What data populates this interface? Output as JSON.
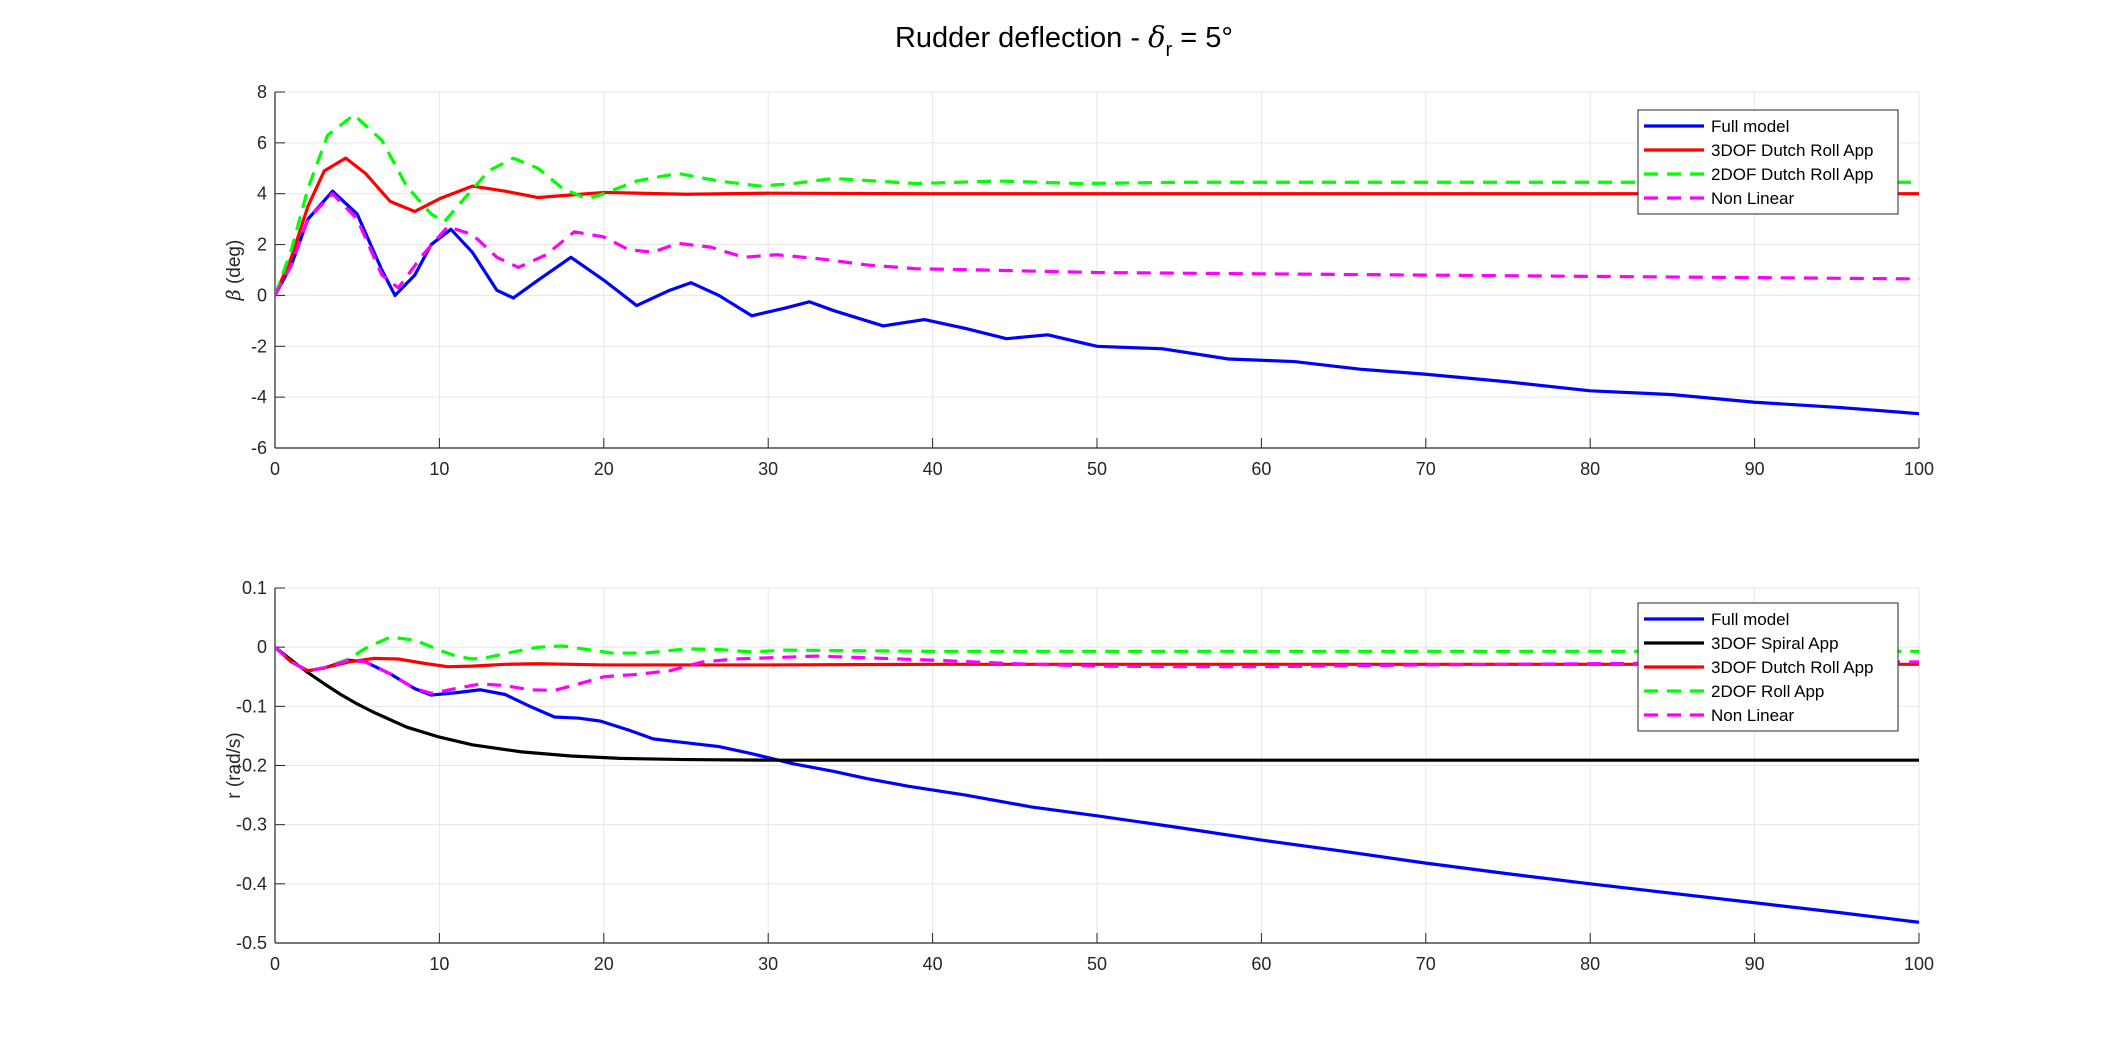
{
  "figure": {
    "title_prefix": "Rudder deflection - ",
    "title_symbol": "δ",
    "title_subscript": "r",
    "title_suffix": " = 5°"
  },
  "chart_data": [
    {
      "type": "line",
      "id": "beta",
      "title": "",
      "xlabel": "",
      "ylabel_symbol": "β",
      "ylabel_unit": " (deg)",
      "xlim": [
        0,
        100
      ],
      "ylim": [
        -6,
        8
      ],
      "xticks": [
        0,
        10,
        20,
        30,
        40,
        50,
        60,
        70,
        80,
        90,
        100
      ],
      "yticks": [
        -6,
        -4,
        -2,
        0,
        2,
        4,
        6,
        8
      ],
      "grid": true,
      "legend_position": "top-right",
      "series": [
        {
          "name": "Full model",
          "color": "#0000ff",
          "dash": "solid",
          "x": [
            0,
            1,
            2,
            3.5,
            5,
            6.5,
            7.3,
            8.5,
            9.5,
            10.7,
            12,
            13.5,
            14.5,
            16,
            18,
            20,
            22,
            24,
            25.3,
            27,
            29,
            31,
            32.5,
            34,
            37,
            39.5,
            42,
            44.5,
            47,
            50,
            54,
            58,
            62,
            66,
            70,
            75,
            80,
            85,
            90,
            95,
            100
          ],
          "y": [
            0,
            1.2,
            3.0,
            4.1,
            3.2,
            1.0,
            0.0,
            0.8,
            2.0,
            2.6,
            1.7,
            0.2,
            -0.1,
            0.6,
            1.5,
            0.6,
            -0.4,
            0.2,
            0.5,
            0.0,
            -0.8,
            -0.5,
            -0.25,
            -0.6,
            -1.2,
            -0.95,
            -1.3,
            -1.7,
            -1.55,
            -2.0,
            -2.1,
            -2.5,
            -2.6,
            -2.9,
            -3.1,
            -3.4,
            -3.75,
            -3.9,
            -4.2,
            -4.4,
            -4.65
          ]
        },
        {
          "name": "3DOF Dutch Roll App",
          "color": "#ff0000",
          "dash": "solid",
          "x": [
            0,
            1,
            2,
            3,
            4.3,
            5.5,
            7,
            8.5,
            10,
            12,
            14,
            16,
            18,
            20,
            25,
            30,
            40,
            60,
            80,
            100
          ],
          "y": [
            0,
            1.5,
            3.5,
            4.9,
            5.4,
            4.8,
            3.7,
            3.3,
            3.8,
            4.3,
            4.1,
            3.85,
            3.95,
            4.05,
            3.98,
            4.02,
            4.0,
            4.0,
            4.0,
            4.0
          ]
        },
        {
          "name": "2DOF Dutch Roll App",
          "color": "#00ff00",
          "dash": "dashed",
          "x": [
            0,
            1,
            2,
            3.2,
            4.8,
            6.5,
            8,
            9.5,
            10.3,
            11.5,
            13,
            14.5,
            16,
            17.5,
            19,
            20,
            22,
            24.5,
            27,
            29.5,
            31.5,
            34,
            36.5,
            39,
            44,
            49,
            55,
            60,
            70,
            80,
            90,
            100
          ],
          "y": [
            0,
            1.8,
            4.2,
            6.3,
            7.1,
            6.1,
            4.3,
            3.2,
            2.9,
            3.8,
            4.9,
            5.4,
            5.0,
            4.2,
            3.8,
            4.0,
            4.5,
            4.8,
            4.5,
            4.3,
            4.4,
            4.6,
            4.5,
            4.4,
            4.5,
            4.4,
            4.45,
            4.45,
            4.45,
            4.45,
            4.45,
            4.45
          ]
        },
        {
          "name": "Non Linear",
          "color": "#ff00ff",
          "dash": "dashed",
          "x": [
            0,
            1,
            2,
            3.5,
            5,
            6.5,
            7.5,
            9,
            10.5,
            12,
            13.5,
            14.8,
            16.5,
            18.2,
            20,
            21.5,
            23,
            24.5,
            26.5,
            28.5,
            30.5,
            33,
            36,
            39,
            43,
            50,
            60,
            70,
            80,
            90,
            100
          ],
          "y": [
            0,
            1.2,
            3.0,
            4.0,
            3.0,
            0.8,
            0.3,
            1.6,
            2.7,
            2.4,
            1.5,
            1.1,
            1.6,
            2.5,
            2.3,
            1.8,
            1.7,
            2.05,
            1.9,
            1.5,
            1.6,
            1.45,
            1.2,
            1.05,
            1.0,
            0.9,
            0.85,
            0.8,
            0.75,
            0.7,
            0.65
          ]
        }
      ]
    },
    {
      "type": "line",
      "id": "r",
      "title": "",
      "xlabel": "",
      "ylabel": "r (rad/s)",
      "xlim": [
        0,
        100
      ],
      "ylim": [
        -0.5,
        0.1
      ],
      "xticks": [
        0,
        10,
        20,
        30,
        40,
        50,
        60,
        70,
        80,
        90,
        100
      ],
      "yticks": [
        -0.5,
        -0.4,
        -0.3,
        -0.2,
        -0.1,
        0,
        0.1
      ],
      "grid": true,
      "legend_position": "top-right",
      "series": [
        {
          "name": "Full model",
          "color": "#0000ff",
          "dash": "solid",
          "x": [
            0,
            1,
            2,
            3,
            4.5,
            5.5,
            7,
            8.5,
            9.5,
            11,
            12.5,
            14,
            15.5,
            17,
            18.5,
            19.8,
            21.5,
            23,
            24.5,
            27,
            29,
            31.5,
            34,
            36,
            38.5,
            42,
            46,
            50,
            55,
            60,
            65,
            70,
            75,
            80,
            85,
            90,
            95,
            100
          ],
          "y": [
            0,
            -0.025,
            -0.04,
            -0.035,
            -0.022,
            -0.025,
            -0.045,
            -0.07,
            -0.081,
            -0.077,
            -0.072,
            -0.08,
            -0.1,
            -0.118,
            -0.12,
            -0.125,
            -0.14,
            -0.155,
            -0.16,
            -0.168,
            -0.18,
            -0.197,
            -0.21,
            -0.222,
            -0.235,
            -0.25,
            -0.27,
            -0.285,
            -0.305,
            -0.326,
            -0.345,
            -0.365,
            -0.383,
            -0.4,
            -0.416,
            -0.432,
            -0.448,
            -0.465
          ]
        },
        {
          "name": "3DOF Spiral App",
          "color": "#000000",
          "dash": "solid",
          "x": [
            0,
            1,
            2,
            3,
            4,
            5,
            6,
            8,
            10,
            12,
            15,
            18,
            21,
            25,
            30,
            35,
            40,
            50,
            60,
            70,
            80,
            90,
            100
          ],
          "y": [
            0,
            -0.022,
            -0.043,
            -0.062,
            -0.08,
            -0.096,
            -0.11,
            -0.135,
            -0.152,
            -0.165,
            -0.177,
            -0.184,
            -0.188,
            -0.19,
            -0.191,
            -0.191,
            -0.191,
            -0.191,
            -0.191,
            -0.191,
            -0.191,
            -0.191,
            -0.191
          ]
        },
        {
          "name": "3DOF Dutch Roll App",
          "color": "#ff0000",
          "dash": "solid",
          "x": [
            0,
            1,
            2,
            3,
            4.5,
            6,
            7.5,
            9,
            10.5,
            12,
            14,
            16,
            18,
            20,
            25,
            30,
            40,
            60,
            80,
            100
          ],
          "y": [
            0,
            -0.025,
            -0.04,
            -0.035,
            -0.025,
            -0.019,
            -0.02,
            -0.027,
            -0.033,
            -0.032,
            -0.029,
            -0.028,
            -0.029,
            -0.03,
            -0.03,
            -0.03,
            -0.029,
            -0.029,
            -0.029,
            -0.029
          ]
        },
        {
          "name": "2DOF Roll App",
          "color": "#00ff00",
          "dash": "dashed",
          "x": [
            0,
            1,
            2,
            3,
            4.5,
            5.5,
            7,
            8.5,
            10,
            11,
            12,
            13,
            14.5,
            16,
            17.5,
            19,
            20.5,
            22.5,
            25,
            27,
            29,
            31,
            35,
            40,
            50,
            60,
            70,
            80,
            90,
            100
          ],
          "y": [
            0,
            -0.025,
            -0.04,
            -0.035,
            -0.02,
            -0.002,
            0.017,
            0.012,
            -0.005,
            -0.015,
            -0.02,
            -0.017,
            -0.008,
            0.0,
            0.002,
            -0.004,
            -0.01,
            -0.01,
            -0.003,
            -0.004,
            -0.008,
            -0.005,
            -0.006,
            -0.007,
            -0.007,
            -0.007,
            -0.007,
            -0.007,
            -0.007,
            -0.007
          ]
        },
        {
          "name": "Non Linear",
          "color": "#ff00ff",
          "dash": "dashed",
          "x": [
            0,
            1,
            2,
            3,
            4.5,
            5.5,
            7,
            8.5,
            9.5,
            11,
            12.5,
            14,
            15.5,
            17,
            18.5,
            20,
            22,
            24,
            26,
            28,
            30,
            33,
            36,
            40,
            45,
            50,
            55,
            60,
            70,
            80,
            90,
            100
          ],
          "y": [
            0,
            -0.025,
            -0.04,
            -0.035,
            -0.022,
            -0.025,
            -0.045,
            -0.07,
            -0.078,
            -0.07,
            -0.062,
            -0.065,
            -0.072,
            -0.073,
            -0.062,
            -0.05,
            -0.046,
            -0.04,
            -0.025,
            -0.02,
            -0.018,
            -0.015,
            -0.018,
            -0.022,
            -0.028,
            -0.032,
            -0.033,
            -0.033,
            -0.03,
            -0.028,
            -0.026,
            -0.025
          ]
        }
      ]
    }
  ]
}
